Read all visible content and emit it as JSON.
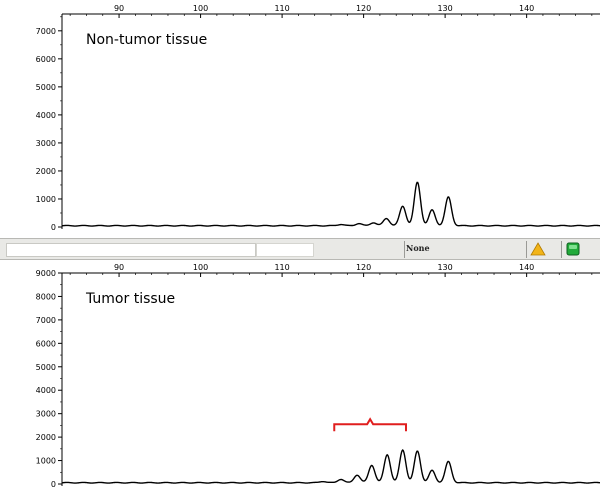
{
  "chart_data": [
    {
      "type": "line",
      "label": "Non-tumor tissue",
      "x_ticks": [
        90,
        100,
        110,
        120,
        130,
        140
      ],
      "xlim": [
        83,
        149
      ],
      "y_ticks": [
        0,
        1000,
        2000,
        3000,
        4000,
        5000,
        6000,
        7000
      ],
      "ylim": [
        0,
        7600
      ],
      "peaks": [
        {
          "x": 117.2,
          "y": 50
        },
        {
          "x": 119.4,
          "y": 80
        },
        {
          "x": 121.2,
          "y": 110
        },
        {
          "x": 122.8,
          "y": 260
        },
        {
          "x": 124.8,
          "y": 700
        },
        {
          "x": 126.6,
          "y": 1550
        },
        {
          "x": 128.4,
          "y": 560
        },
        {
          "x": 130.4,
          "y": 1020
        }
      ]
    },
    {
      "type": "line",
      "label": "Tumor tissue",
      "x_ticks": [
        90,
        100,
        110,
        120,
        130,
        140
      ],
      "xlim": [
        83,
        149
      ],
      "y_ticks": [
        0,
        1000,
        2000,
        3000,
        4000,
        5000,
        6000,
        7000,
        8000,
        9000
      ],
      "ylim": [
        0,
        9000
      ],
      "peaks": [
        {
          "x": 115.0,
          "y": 60
        },
        {
          "x": 117.2,
          "y": 150
        },
        {
          "x": 119.2,
          "y": 330
        },
        {
          "x": 121.0,
          "y": 750
        },
        {
          "x": 122.9,
          "y": 1200
        },
        {
          "x": 124.8,
          "y": 1400
        },
        {
          "x": 126.6,
          "y": 1350
        },
        {
          "x": 128.4,
          "y": 520
        },
        {
          "x": 130.4,
          "y": 900
        }
      ],
      "annotation": {
        "type": "bracket",
        "x_start": 116.4,
        "x_end": 125.2,
        "y": 2550,
        "color": "#e01e1e"
      }
    }
  ],
  "status_bar": {
    "text": "None",
    "warning_icon": "warning-triangle-icon",
    "ok_icon": "green-status-icon"
  },
  "colors": {
    "trace": "#000000",
    "bracket": "#e01e1e",
    "warning": "#f2b418",
    "ok": "#22aa3a"
  }
}
